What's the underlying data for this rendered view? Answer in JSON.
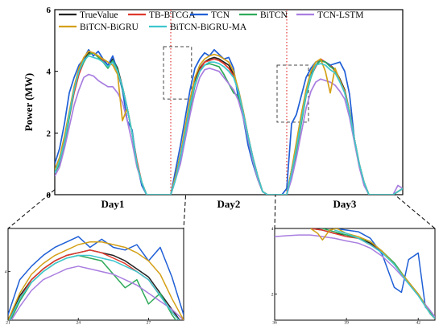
{
  "chart_data": [
    {
      "type": "line",
      "title": "",
      "ylabel": "Power (MW)",
      "xlabel": "",
      "ylim": [
        0,
        6
      ],
      "xlim": [
        0,
        72
      ],
      "yticks": [
        0,
        2,
        4,
        6
      ],
      "day_labels": [
        "Day1",
        "Day2",
        "Day3"
      ],
      "day_label_x": [
        12,
        36,
        60
      ],
      "day_separators": [
        24,
        48
      ],
      "legend_position": "top",
      "zoom_regions": [
        {
          "x": [
            22.5,
            28.3
          ],
          "y": [
            3.1,
            4.8
          ]
        },
        {
          "x": [
            46.0,
            52.5
          ],
          "y": [
            2.35,
            4.2
          ]
        }
      ],
      "series": [
        {
          "name": "TrueValue",
          "color": "#222222",
          "values": [
            0.8,
            1.2,
            1.8,
            2.6,
            3.4,
            4.0,
            4.4,
            4.6,
            4.6,
            4.5,
            4.3,
            4.2,
            4.4,
            4.1,
            3.5,
            2.8,
            2.0,
            1.0,
            0.4,
            0.0,
            0.0,
            0.0,
            0.0,
            0.0,
            0.0,
            0.6,
            1.3,
            2.1,
            3.0,
            3.7,
            4.1,
            4.3,
            4.4,
            4.45,
            4.4,
            4.3,
            4.2,
            3.9,
            3.4,
            2.7,
            1.9,
            1.2,
            0.6,
            0.1,
            0.0,
            0.0,
            0.0,
            0.0,
            0.0,
            0.8,
            1.6,
            2.5,
            3.3,
            3.9,
            4.2,
            4.35,
            4.3,
            4.2,
            4.05,
            3.75,
            3.4,
            2.7,
            1.8,
            1.0,
            0.4,
            0.0,
            0.0,
            0.0,
            0.0,
            0.0,
            0.0,
            0.1,
            0.2
          ]
        },
        {
          "name": "TB-BTCGA",
          "color": "#e0392c",
          "values": [
            0.7,
            1.1,
            1.7,
            2.5,
            3.3,
            3.9,
            4.3,
            4.55,
            4.6,
            4.5,
            4.35,
            4.2,
            4.3,
            4.0,
            3.5,
            2.8,
            2.0,
            1.1,
            0.4,
            0.0,
            0.0,
            0.0,
            0.0,
            0.0,
            0.0,
            0.5,
            1.2,
            2.0,
            2.9,
            3.6,
            4.05,
            4.3,
            4.35,
            4.4,
            4.35,
            4.25,
            4.1,
            3.85,
            3.35,
            2.65,
            1.9,
            1.2,
            0.6,
            0.1,
            0.0,
            0.0,
            0.0,
            0.0,
            0.0,
            0.7,
            1.5,
            2.4,
            3.25,
            3.85,
            4.15,
            4.4,
            4.3,
            4.2,
            4.0,
            3.7,
            3.35,
            2.7,
            1.8,
            1.0,
            0.4,
            0.0,
            0.0,
            0.0,
            0.0,
            0.0,
            0.0,
            0.1,
            0.2
          ]
        },
        {
          "name": "TCN",
          "color": "#1f5fd6",
          "values": [
            1.0,
            1.5,
            2.3,
            3.3,
            3.8,
            4.2,
            4.4,
            4.7,
            4.5,
            4.65,
            4.4,
            4.2,
            4.5,
            4.0,
            3.4,
            2.4,
            2.1,
            1.0,
            0.3,
            0.0,
            0.0,
            0.0,
            0.0,
            0.0,
            0.0,
            0.8,
            1.6,
            2.5,
            3.4,
            4.1,
            4.4,
            4.6,
            4.5,
            4.7,
            4.55,
            4.4,
            4.45,
            4.1,
            3.1,
            2.5,
            1.6,
            1.0,
            0.5,
            0.1,
            0.0,
            0.0,
            0.0,
            0.0,
            0.2,
            2.3,
            2.6,
            3.2,
            3.8,
            4.1,
            4.3,
            4.35,
            4.3,
            4.2,
            4.25,
            4.3,
            4.0,
            3.25,
            1.8,
            1.0,
            0.4,
            0.0,
            0.0,
            0.0,
            0.0,
            0.0,
            0.0,
            0.1,
            0.2
          ]
        },
        {
          "name": "BiTCN",
          "color": "#2faa5a",
          "values": [
            0.7,
            1.0,
            1.6,
            2.5,
            3.4,
            4.0,
            4.3,
            4.55,
            4.6,
            4.45,
            4.3,
            4.1,
            4.35,
            4.05,
            3.45,
            2.8,
            2.0,
            1.0,
            0.4,
            0.0,
            0.0,
            0.0,
            0.0,
            0.0,
            0.0,
            0.5,
            1.1,
            1.9,
            2.8,
            3.55,
            4.0,
            4.2,
            4.25,
            4.2,
            4.15,
            3.9,
            3.6,
            3.3,
            3.2,
            2.5,
            1.8,
            1.1,
            0.5,
            0.1,
            0.0,
            0.0,
            0.0,
            0.0,
            0.0,
            0.6,
            1.4,
            2.3,
            3.2,
            3.8,
            4.2,
            4.35,
            4.3,
            4.15,
            4.05,
            3.7,
            3.3,
            2.7,
            1.8,
            1.0,
            0.4,
            0.0,
            0.0,
            0.0,
            0.0,
            0.0,
            0.0,
            0.1,
            0.2
          ]
        },
        {
          "name": "TCN-LSTM",
          "color": "#a97ee0",
          "values": [
            0.6,
            0.9,
            1.5,
            2.2,
            2.9,
            3.4,
            3.8,
            3.9,
            3.85,
            3.7,
            3.6,
            3.5,
            3.5,
            3.3,
            3.0,
            2.4,
            1.7,
            0.9,
            0.4,
            0.0,
            0.0,
            0.0,
            0.0,
            0.0,
            0.0,
            0.5,
            1.0,
            1.8,
            2.6,
            3.3,
            3.8,
            4.05,
            4.1,
            4.05,
            4.0,
            3.8,
            3.6,
            3.4,
            3.05,
            2.5,
            1.8,
            1.1,
            0.5,
            0.1,
            0.0,
            0.0,
            0.0,
            0.0,
            0.0,
            0.5,
            1.2,
            2.0,
            2.8,
            3.35,
            3.65,
            3.75,
            3.7,
            3.65,
            3.55,
            3.35,
            3.1,
            2.5,
            1.7,
            0.9,
            0.3,
            0.0,
            0.0,
            0.0,
            0.0,
            0.0,
            0.0,
            0.3,
            0.2
          ]
        },
        {
          "name": "BiTCN-BiGRU",
          "color": "#d4a017",
          "values": [
            0.8,
            1.2,
            1.9,
            2.7,
            3.5,
            4.1,
            4.45,
            4.65,
            4.6,
            4.5,
            4.4,
            4.3,
            4.2,
            3.9,
            2.4,
            2.8,
            2.0,
            1.0,
            0.4,
            0.0,
            0.0,
            0.0,
            0.0,
            0.0,
            0.0,
            0.6,
            1.3,
            2.2,
            3.1,
            3.8,
            4.2,
            4.4,
            4.5,
            4.55,
            4.5,
            4.4,
            4.3,
            4.0,
            3.4,
            2.7,
            1.9,
            1.2,
            0.6,
            0.1,
            0.0,
            0.0,
            0.0,
            0.0,
            0.0,
            0.8,
            1.7,
            2.6,
            3.4,
            4.0,
            4.3,
            4.4,
            4.0,
            3.3,
            4.1,
            3.7,
            3.35,
            2.7,
            1.8,
            1.0,
            0.4,
            0.0,
            0.0,
            0.0,
            0.0,
            0.0,
            0.0,
            0.1,
            0.2
          ]
        },
        {
          "name": "BiTCN-BiGRU-MA",
          "color": "#3ec6cf",
          "values": [
            0.7,
            1.1,
            1.7,
            2.6,
            3.4,
            4.0,
            4.35,
            4.5,
            4.45,
            4.4,
            4.3,
            4.15,
            4.3,
            4.0,
            3.5,
            2.8,
            2.0,
            1.0,
            0.4,
            0.0,
            0.0,
            0.0,
            0.0,
            0.0,
            0.0,
            0.5,
            1.2,
            2.0,
            2.9,
            3.6,
            4.0,
            4.2,
            4.3,
            4.3,
            4.25,
            4.15,
            4.0,
            3.8,
            3.35,
            2.65,
            1.9,
            1.2,
            0.6,
            0.1,
            0.0,
            0.0,
            0.0,
            0.0,
            0.0,
            0.7,
            1.5,
            2.4,
            3.25,
            3.85,
            4.2,
            4.25,
            4.2,
            4.05,
            3.95,
            3.65,
            3.3,
            2.65,
            1.8,
            1.0,
            0.4,
            0.0,
            0.0,
            0.0,
            0.0,
            0.0,
            0.0,
            0.1,
            0.2
          ]
        }
      ]
    },
    {
      "type": "line",
      "title": "",
      "xlim": [
        21,
        28.5
      ],
      "ylim": [
        3.1,
        4.8
      ],
      "xticks": [
        21,
        24,
        27
      ],
      "yticks": [
        4
      ],
      "series": [
        {
          "name": "TrueValue",
          "color": "#222222",
          "x": [
            21,
            21.5,
            22,
            22.5,
            23,
            23.5,
            24,
            24.5,
            25,
            25.5,
            26,
            26.5,
            27,
            27.5,
            28,
            28.5
          ],
          "values": [
            3.1,
            3.55,
            3.85,
            4.05,
            4.2,
            4.3,
            4.35,
            4.4,
            4.35,
            4.3,
            4.2,
            4.05,
            3.9,
            3.6,
            3.3,
            3.0
          ]
        },
        {
          "name": "TB-BTCGA",
          "color": "#e0392c",
          "x": [
            21,
            21.5,
            22,
            22.5,
            23,
            23.5,
            24,
            24.5,
            25,
            25.5,
            26,
            26.5,
            27,
            27.5,
            28,
            28.5
          ],
          "values": [
            3.05,
            3.5,
            3.85,
            4.05,
            4.2,
            4.3,
            4.35,
            4.4,
            4.35,
            4.25,
            4.15,
            4.0,
            3.85,
            3.55,
            3.25,
            3.0
          ]
        },
        {
          "name": "TCN",
          "color": "#1f5fd6",
          "x": [
            21,
            21.5,
            22,
            22.5,
            23,
            23.5,
            24,
            24.5,
            25,
            25.5,
            26,
            26.5,
            27,
            27.5,
            28,
            28.5
          ],
          "values": [
            3.2,
            3.85,
            4.1,
            4.3,
            4.45,
            4.55,
            4.65,
            4.45,
            4.6,
            4.45,
            4.4,
            4.5,
            4.2,
            4.45,
            3.9,
            3.2
          ]
        },
        {
          "name": "BiTCN",
          "color": "#2faa5a",
          "x": [
            21,
            21.5,
            22,
            22.5,
            23,
            23.5,
            24,
            24.5,
            25,
            25.5,
            26,
            26.5,
            27,
            27.5,
            28,
            28.5
          ],
          "values": [
            3.0,
            3.45,
            3.8,
            4.0,
            4.15,
            4.25,
            4.3,
            4.25,
            4.2,
            3.95,
            3.7,
            3.85,
            3.4,
            3.6,
            3.2,
            2.9
          ]
        },
        {
          "name": "TCN-LSTM",
          "color": "#a97ee0",
          "x": [
            21,
            21.5,
            22,
            22.5,
            23,
            23.5,
            24,
            24.5,
            25,
            25.5,
            26,
            26.5,
            27,
            27.5,
            28,
            28.5
          ],
          "values": [
            3.0,
            3.35,
            3.65,
            3.85,
            3.95,
            4.05,
            4.1,
            4.05,
            4.0,
            3.95,
            3.85,
            3.75,
            3.6,
            3.45,
            3.3,
            3.1
          ]
        },
        {
          "name": "BiTCN-BiGRU",
          "color": "#d4a017",
          "x": [
            21,
            21.5,
            22,
            22.5,
            23,
            23.5,
            24,
            24.5,
            25,
            25.5,
            26,
            26.5,
            27,
            27.5,
            28,
            28.5
          ],
          "values": [
            3.1,
            3.6,
            3.95,
            4.15,
            4.3,
            4.4,
            4.5,
            4.55,
            4.55,
            4.5,
            4.45,
            4.35,
            4.2,
            3.95,
            3.5,
            3.1
          ]
        },
        {
          "name": "BiTCN-BiGRU-MA",
          "color": "#3ec6cf",
          "x": [
            21,
            21.5,
            22,
            22.5,
            23,
            23.5,
            24,
            24.5,
            25,
            25.5,
            26,
            26.5,
            27,
            27.5,
            28,
            28.5
          ],
          "values": [
            3.05,
            3.5,
            3.8,
            4.0,
            4.15,
            4.25,
            4.3,
            4.3,
            4.25,
            4.2,
            4.1,
            4.0,
            3.85,
            3.55,
            3.25,
            3.0
          ]
        }
      ]
    },
    {
      "type": "line",
      "title": "",
      "xlim": [
        36,
        42.7
      ],
      "ylim": [
        1.2,
        4.0
      ],
      "xticks": [
        36,
        39,
        42
      ],
      "yticks": [
        2,
        4
      ],
      "series": [
        {
          "name": "TrueValue",
          "color": "#222222",
          "x": [
            37.5,
            38,
            38.5,
            39,
            39.5,
            40,
            40.5,
            41,
            41.5,
            42,
            42.5,
            42.7
          ],
          "values": [
            4.0,
            3.95,
            3.85,
            3.8,
            3.7,
            3.55,
            3.3,
            2.9,
            2.45,
            2.0,
            1.4,
            1.25
          ]
        },
        {
          "name": "TB-BTCGA",
          "color": "#e0392c",
          "x": [
            37.5,
            38,
            38.5,
            39,
            39.5,
            40,
            40.5,
            41,
            41.5,
            42,
            42.5,
            42.7
          ],
          "values": [
            4.0,
            3.95,
            3.85,
            3.75,
            3.7,
            3.5,
            3.3,
            2.9,
            2.45,
            2.0,
            1.4,
            1.25
          ]
        },
        {
          "name": "TCN",
          "color": "#1f5fd6",
          "x": [
            38.5,
            39,
            39.5,
            40,
            40.5,
            41,
            41.3,
            41.6,
            42,
            42.3,
            42.7
          ],
          "values": [
            4.0,
            3.95,
            3.9,
            3.7,
            3.2,
            2.2,
            2.05,
            3.05,
            3.25,
            1.6,
            1.3
          ]
        },
        {
          "name": "BiTCN",
          "color": "#2faa5a",
          "x": [
            38,
            38.5,
            39,
            39.5,
            40,
            40.5,
            41,
            41.5,
            42,
            42.5,
            42.7
          ],
          "values": [
            4.0,
            3.9,
            3.8,
            3.7,
            3.6,
            3.3,
            2.95,
            2.45,
            2.0,
            1.45,
            1.25
          ]
        },
        {
          "name": "TCN-LSTM",
          "color": "#a97ee0",
          "x": [
            36,
            36.5,
            37,
            37.5,
            38,
            38.5,
            39,
            39.5,
            40,
            40.5,
            41,
            41.5,
            42,
            42.5,
            42.7
          ],
          "values": [
            3.75,
            3.78,
            3.8,
            3.8,
            3.75,
            3.7,
            3.62,
            3.55,
            3.4,
            3.15,
            2.8,
            2.4,
            1.95,
            1.5,
            1.3
          ]
        },
        {
          "name": "BiTCN-BiGRU",
          "color": "#d4a017",
          "x": [
            37.5,
            37.8,
            38,
            38.3,
            38.6,
            39,
            39.5,
            40,
            40.5,
            41,
            41.5,
            42,
            42.5,
            42.7
          ],
          "values": [
            4.0,
            3.85,
            3.65,
            3.95,
            4.0,
            3.85,
            3.75,
            3.6,
            3.3,
            2.9,
            2.45,
            2.0,
            1.4,
            1.25
          ]
        },
        {
          "name": "BiTCN-BiGRU-MA",
          "color": "#3ec6cf",
          "x": [
            38.5,
            39,
            39.5,
            40,
            40.5,
            41,
            41.5,
            42,
            42.5,
            42.7
          ],
          "values": [
            3.95,
            3.85,
            3.7,
            3.5,
            3.25,
            2.9,
            2.4,
            1.95,
            1.4,
            1.25
          ]
        }
      ]
    }
  ]
}
